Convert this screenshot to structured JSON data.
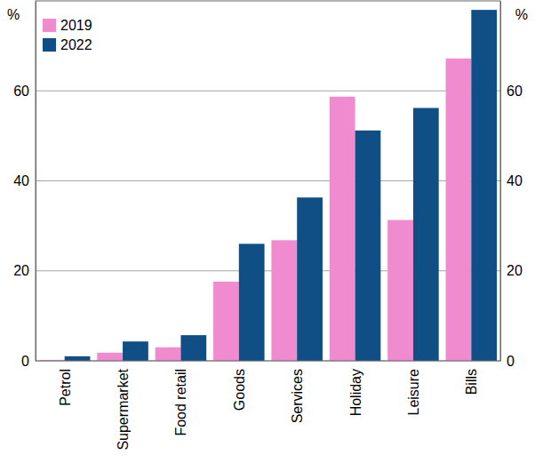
{
  "chart_data": {
    "type": "bar",
    "y_label": "%",
    "categories": [
      "Petrol",
      "Supermarket",
      "Food retail",
      "Goods",
      "Services",
      "Holiday",
      "Leisure",
      "Bills"
    ],
    "series": [
      {
        "name": "2019",
        "color": "#f08bd0",
        "values": [
          0.2,
          1.8,
          3.0,
          17.6,
          26.8,
          58.7,
          31.3,
          67.2
        ]
      },
      {
        "name": "2022",
        "color": "#0f4f86",
        "values": [
          1.0,
          4.3,
          5.7,
          26.0,
          36.3,
          51.2,
          56.2,
          78.0
        ]
      }
    ],
    "ylim": [
      0,
      80
    ],
    "yticks": [
      0,
      20,
      40,
      60
    ],
    "grid": true,
    "legend": "top-left"
  }
}
